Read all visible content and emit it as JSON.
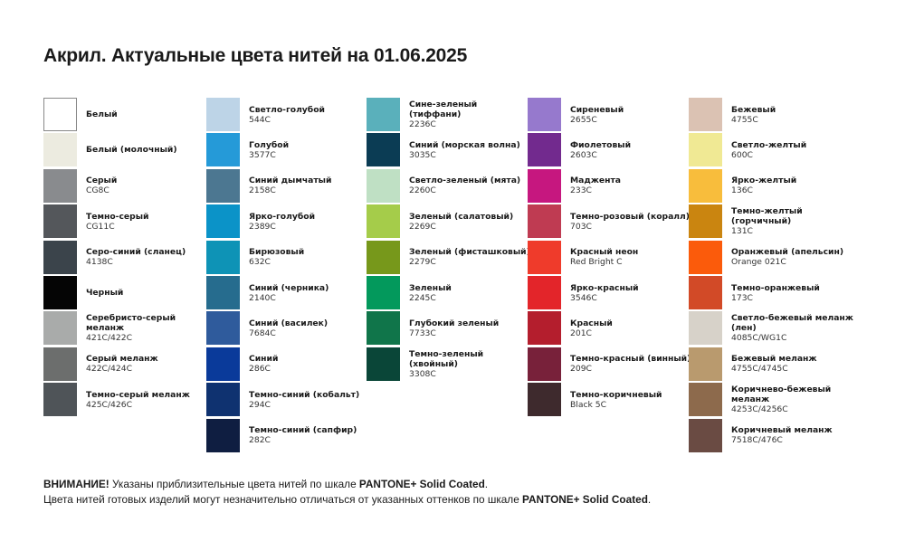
{
  "header": {
    "title": "Акрил. Актуальные цвета нитей на 01.06.2025"
  },
  "columns": [
    [
      {
        "name": "Белый",
        "color": "#ffffff"
      },
      {
        "name": "Белый (молочный)",
        "color": "#ecebe0"
      },
      {
        "name": "Серый",
        "code": "CG8C",
        "color": "#898b8e"
      },
      {
        "name": "Темно-серый",
        "code": "CG11C",
        "color": "#54575b"
      },
      {
        "name": "Серо-синий (сланец)",
        "code": "4138C",
        "color": "#3b444b"
      },
      {
        "name": "Черный",
        "color": "#050505"
      },
      {
        "name": "Серебристо-серый меланж",
        "code": "421C/422C",
        "color": "#a9abaa"
      },
      {
        "name": "Серый меланж",
        "code": "422C/424C",
        "color": "#6c6e6d"
      },
      {
        "name": "Темно-серый меланж",
        "code": "425C/426C",
        "color": "#4f5458"
      }
    ],
    [
      {
        "name": "Светло-голубой",
        "code": "544C",
        "color": "#bdd4e7"
      },
      {
        "name": "Голубой",
        "code": "3577C",
        "color": "#259ad8"
      },
      {
        "name": "Синий дымчатый",
        "code": "2158C",
        "color": "#4c7791"
      },
      {
        "name": "Ярко-голубой",
        "code": "2389C",
        "color": "#0b93c8"
      },
      {
        "name": "Бирюзовый",
        "code": "632C",
        "color": "#0e93b6"
      },
      {
        "name": "Синий (черника)",
        "code": "2140C",
        "color": "#266c8e"
      },
      {
        "name": "Синий (василек)",
        "code": "7684C",
        "color": "#2f5b9c"
      },
      {
        "name": "Синий",
        "code": "286C",
        "color": "#0a3a9a"
      },
      {
        "name": "Темно-синий (кобальт)",
        "code": "294C",
        "color": "#0f3270"
      },
      {
        "name": "Темно-синий (сапфир)",
        "code": "282C",
        "color": "#0f1e41"
      }
    ],
    [
      {
        "name": "Сине-зеленый (тиффани)",
        "code": "2236C",
        "color": "#5ab0bb"
      },
      {
        "name": "Синий (морская волна)",
        "code": "3035C",
        "color": "#0b3c54"
      },
      {
        "name": "Светло-зеленый (мята)",
        "code": "2260C",
        "color": "#bfe0c4"
      },
      {
        "name": "Зеленый (салатовый)",
        "code": "2269C",
        "color": "#a5cc4a"
      },
      {
        "name": "Зеленый (фисташковый)",
        "code": "2279C",
        "color": "#77981b"
      },
      {
        "name": "Зеленый",
        "code": "2245C",
        "color": "#03995c"
      },
      {
        "name": "Глубокий зеленый",
        "code": "7733C",
        "color": "#10754a"
      },
      {
        "name": "Темно-зеленый (хвойный)",
        "code": "3308C",
        "color": "#0a4638"
      }
    ],
    [
      {
        "name": "Сиреневый",
        "code": "2655C",
        "color": "#9679cd"
      },
      {
        "name": "Фиолетовый",
        "code": "2603C",
        "color": "#722a8e"
      },
      {
        "name": "Маджента",
        "code": "233C",
        "color": "#c6177f"
      },
      {
        "name": "Темно-розовый (коралл)",
        "code": "703C",
        "color": "#bf3b52"
      },
      {
        "name": "Красный неон",
        "code": "Red Bright C",
        "color": "#ef3b2b"
      },
      {
        "name": "Ярко-красный",
        "code": "3546C",
        "color": "#e3252a"
      },
      {
        "name": "Красный",
        "code": "201C",
        "color": "#b41e2d"
      },
      {
        "name": "Темно-красный (винный)",
        "code": "209C",
        "color": "#78213a"
      },
      {
        "name": "Темно-коричневый",
        "code": "Black 5C",
        "color": "#3e2a2d"
      }
    ],
    [
      {
        "name": "Бежевый",
        "code": "4755C",
        "color": "#dbc2b3"
      },
      {
        "name": "Светло-желтый",
        "code": "600C",
        "color": "#f0e994"
      },
      {
        "name": "Ярко-желтый",
        "code": "136C",
        "color": "#f8bd3c"
      },
      {
        "name": "Темно-желтый (горчичный)",
        "code": "131C",
        "color": "#ca8510"
      },
      {
        "name": "Оранжевый (апельсин)",
        "code": "Orange 021C",
        "color": "#fb5b0b"
      },
      {
        "name": "Темно-оранжевый",
        "code": "173C",
        "color": "#d24a27"
      },
      {
        "name": "Светло-бежевый меланж (лен)",
        "code": "4085C/WG1C",
        "color": "#d7d2c9"
      },
      {
        "name": "Бежевый меланж",
        "code": "4755C/4745C",
        "color": "#b99a6e"
      },
      {
        "name": "Коричнево-бежевый меланж",
        "code": "4253C/4256C",
        "color": "#8d6a4c"
      },
      {
        "name": "Коричневый меланж",
        "code": "7518C/476C",
        "color": "#6a4b43"
      }
    ]
  ],
  "footer": {
    "lines": [
      [
        {
          "text": "ВНИМАНИЕ!",
          "bold": true
        },
        {
          "text": " Указаны приблизительные цвета нитей по шкале "
        },
        {
          "text": "PANTONE+ Solid Coated",
          "bold": true
        },
        {
          "text": "."
        }
      ],
      [
        {
          "text": "Цвета нитей готовых изделий могут незначительно отличаться от указанных оттенков по шкале "
        },
        {
          "text": "PANTONE+ Solid Coated",
          "bold": true
        },
        {
          "text": "."
        }
      ]
    ]
  }
}
